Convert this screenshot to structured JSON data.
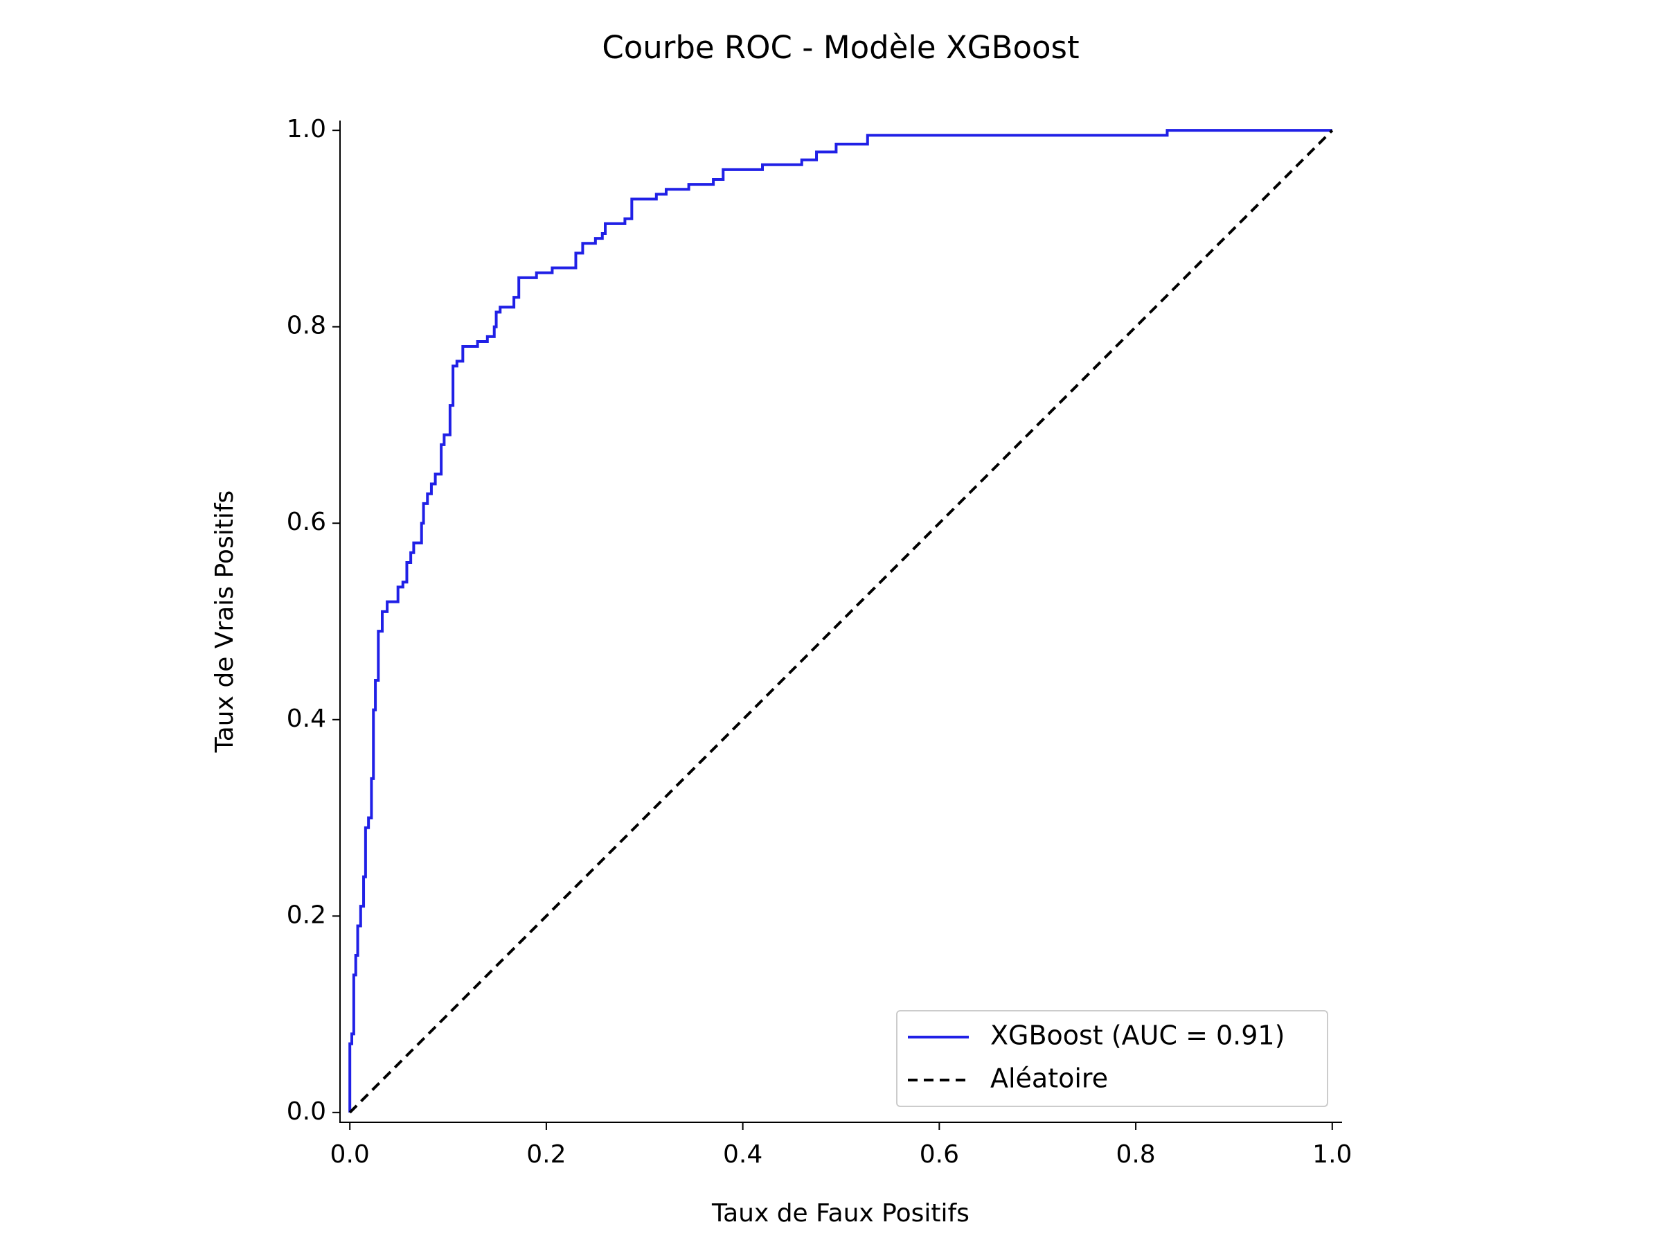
{
  "chart_data": {
    "type": "line",
    "title": "Courbe ROC - Modèle XGBoost",
    "xlabel": "Taux de Faux Positifs",
    "ylabel": "Taux de Vrais Positifs",
    "xlim": [
      -0.01,
      1.01
    ],
    "ylim": [
      -0.01,
      1.01
    ],
    "xticks": [
      {
        "value": 0,
        "label": "0.0"
      },
      0.2,
      0.4,
      0.6,
      0.8,
      {
        "value": 1,
        "label": "1.0"
      }
    ],
    "yticks": [
      {
        "value": 0,
        "label": "0.0"
      },
      0.2,
      0.4,
      0.6,
      0.8,
      {
        "value": 1,
        "label": "1.0"
      }
    ],
    "legend": "lower right",
    "series": [
      {
        "name": "XGBoost (AUC = 0.91)",
        "color": "#2020e6",
        "dash": "solid",
        "x": [
          0,
          0,
          0.002,
          0.002,
          0.004,
          0.004,
          0.006,
          0.006,
          0.008,
          0.008,
          0.011,
          0.011,
          0.014,
          0.014,
          0.016,
          0.016,
          0.019,
          0.019,
          0.022,
          0.022,
          0.024,
          0.024,
          0.026,
          0.026,
          0.029,
          0.029,
          0.033,
          0.033,
          0.038,
          0.038,
          0.049,
          0.049,
          0.054,
          0.054,
          0.058,
          0.058,
          0.062,
          0.062,
          0.065,
          0.065,
          0.073,
          0.073,
          0.075,
          0.075,
          0.079,
          0.079,
          0.083,
          0.083,
          0.087,
          0.087,
          0.093,
          0.093,
          0.096,
          0.096,
          0.102,
          0.102,
          0.105,
          0.105,
          0.109,
          0.109,
          0.115,
          0.115,
          0.13,
          0.13,
          0.14,
          0.14,
          0.147,
          0.147,
          0.149,
          0.149,
          0.153,
          0.153,
          0.167,
          0.167,
          0.172,
          0.172,
          0.19,
          0.19,
          0.206,
          0.206,
          0.23,
          0.23,
          0.237,
          0.237,
          0.25,
          0.25,
          0.257,
          0.257,
          0.26,
          0.26,
          0.28,
          0.28,
          0.287,
          0.287,
          0.312,
          0.312,
          0.322,
          0.322,
          0.345,
          0.345,
          0.37,
          0.37,
          0.38,
          0.38,
          0.42,
          0.42,
          0.46,
          0.46,
          0.475,
          0.475,
          0.495,
          0.495,
          0.527,
          0.527,
          0.832,
          0.832,
          1
        ],
        "values": [
          0,
          0.07,
          0.07,
          0.08,
          0.08,
          0.14,
          0.14,
          0.16,
          0.16,
          0.19,
          0.19,
          0.21,
          0.21,
          0.24,
          0.24,
          0.29,
          0.29,
          0.3,
          0.3,
          0.34,
          0.34,
          0.41,
          0.41,
          0.44,
          0.44,
          0.49,
          0.49,
          0.51,
          0.51,
          0.52,
          0.52,
          0.535,
          0.535,
          0.54,
          0.54,
          0.56,
          0.56,
          0.57,
          0.57,
          0.58,
          0.58,
          0.6,
          0.6,
          0.62,
          0.62,
          0.63,
          0.63,
          0.64,
          0.64,
          0.65,
          0.65,
          0.68,
          0.68,
          0.69,
          0.69,
          0.72,
          0.72,
          0.76,
          0.76,
          0.765,
          0.765,
          0.78,
          0.78,
          0.785,
          0.785,
          0.79,
          0.79,
          0.8,
          0.8,
          0.815,
          0.815,
          0.82,
          0.82,
          0.83,
          0.83,
          0.85,
          0.85,
          0.855,
          0.855,
          0.86,
          0.86,
          0.875,
          0.875,
          0.885,
          0.885,
          0.89,
          0.89,
          0.895,
          0.895,
          0.905,
          0.905,
          0.91,
          0.91,
          0.93,
          0.93,
          0.935,
          0.935,
          0.94,
          0.94,
          0.945,
          0.945,
          0.95,
          0.95,
          0.96,
          0.96,
          0.965,
          0.965,
          0.97,
          0.97,
          0.978,
          0.978,
          0.986,
          0.986,
          0.995,
          0.995,
          1,
          1
        ]
      },
      {
        "name": "Aléatoire",
        "color": "#000000",
        "dash": "dashed",
        "x": [
          0,
          1
        ],
        "values": [
          0,
          1
        ]
      }
    ]
  }
}
